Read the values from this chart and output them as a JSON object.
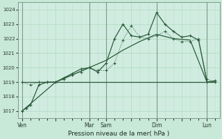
{
  "background_color": "#c8e8d8",
  "plot_bg_color": "#d0ece0",
  "grid_color_minor": "#e0f0e8",
  "grid_color_major": "#b0d8c0",
  "vline_color": "#88aa99",
  "line_color": "#2a5a3a",
  "xlabel": "Pression niveau de la mer( hPa )",
  "yticks": [
    1017,
    1018,
    1019,
    1020,
    1021,
    1022,
    1023,
    1024
  ],
  "ylim_low": 1016.5,
  "ylim_high": 1024.5,
  "day_labels": [
    "Ven",
    "",
    "Mar",
    "Sam",
    "",
    "Dim",
    "",
    "Lun"
  ],
  "day_x": [
    0,
    4,
    8,
    10,
    13,
    16,
    19,
    22
  ],
  "vline_x": [
    0,
    8,
    10,
    16,
    22
  ],
  "series1_x": [
    0,
    0.5,
    1,
    2,
    3,
    4,
    5,
    6,
    7,
    8,
    9,
    10,
    11,
    12,
    13,
    14,
    15,
    16,
    17,
    18,
    19,
    20,
    21,
    22,
    23
  ],
  "series1_y": [
    1017.0,
    1017.2,
    1017.4,
    1018.8,
    1019.0,
    1019.0,
    1019.3,
    1019.6,
    1019.9,
    1020.0,
    1019.7,
    1020.3,
    1022.0,
    1023.0,
    1022.2,
    1022.1,
    1022.3,
    1023.8,
    1023.0,
    1022.5,
    1022.1,
    1022.2,
    1021.9,
    1019.0,
    1019.1
  ],
  "series2_x": [
    0,
    1,
    2,
    3,
    4,
    5,
    6,
    7,
    8,
    9,
    10,
    11,
    12,
    13,
    14,
    15,
    16,
    17,
    18,
    19,
    20,
    21,
    22,
    23
  ],
  "series2_y": [
    1019.0,
    1018.8,
    1019.0,
    1019.0,
    1019.0,
    1019.2,
    1019.5,
    1019.7,
    1020.0,
    1019.8,
    1019.8,
    1020.3,
    1021.9,
    1022.9,
    1022.1,
    1022.0,
    1022.2,
    1022.5,
    1022.0,
    1021.8,
    1021.8,
    1022.0,
    1019.2,
    1019.0
  ],
  "series3_x": [
    0,
    4,
    8,
    9,
    10,
    11,
    12,
    13,
    14,
    15,
    16,
    17,
    18,
    19,
    20,
    21,
    22,
    23
  ],
  "series3_y": [
    1019.0,
    1019.0,
    1019.0,
    1019.0,
    1019.0,
    1019.0,
    1019.0,
    1019.0,
    1019.0,
    1019.0,
    1019.0,
    1019.0,
    1019.0,
    1019.0,
    1019.0,
    1019.0,
    1019.0,
    1019.0
  ],
  "series4_x": [
    0,
    2,
    4,
    6,
    8,
    10,
    12,
    14,
    16,
    18,
    20,
    22,
    23
  ],
  "series4_y": [
    1017.0,
    1018.0,
    1019.0,
    1019.5,
    1020.0,
    1020.5,
    1021.2,
    1021.8,
    1022.3,
    1022.0,
    1021.9,
    1019.0,
    1019.0
  ]
}
